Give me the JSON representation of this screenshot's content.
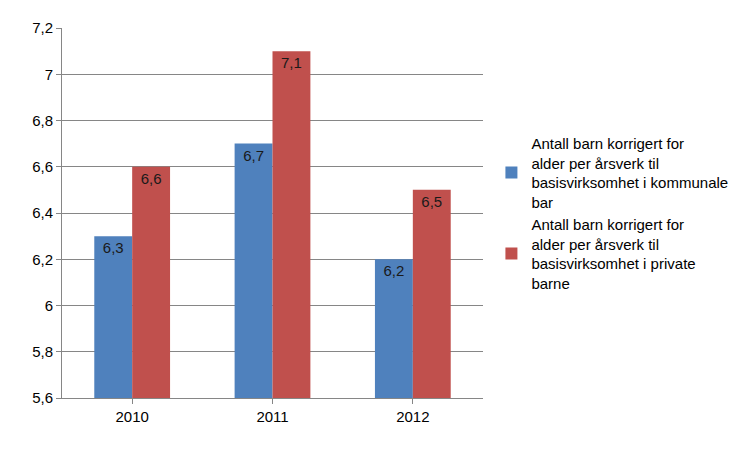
{
  "chart_data": {
    "type": "bar",
    "categories": [
      "2010",
      "2011",
      "2012"
    ],
    "series": [
      {
        "name": "Antall barn korrigert for alder per årsverk til basisvirksomhet i kommunale bar",
        "color": "#4f81bd",
        "values": [
          6.3,
          6.7,
          6.2
        ],
        "value_labels": [
          "6,3",
          "6,7",
          "6,2"
        ]
      },
      {
        "name": "Antall barn korrigert for alder per årsverk til basisvirksomhet i private barne",
        "color": "#c0504d",
        "values": [
          6.6,
          7.1,
          6.5
        ],
        "value_labels": [
          "6,6",
          "7,1",
          "6,5"
        ]
      }
    ],
    "ylim": [
      5.6,
      7.2
    ],
    "yticks": [
      {
        "value": 5.6,
        "label": "5,6"
      },
      {
        "value": 5.8,
        "label": "5,8"
      },
      6,
      {
        "value": 6.2,
        "label": "6,2"
      },
      {
        "value": 6.4,
        "label": "6,4"
      },
      {
        "value": 6.6,
        "label": "6,6"
      },
      {
        "value": 6.8,
        "label": "6,8"
      },
      7,
      {
        "value": 7.2,
        "label": "7,2"
      }
    ],
    "grid": true,
    "legend": "right",
    "data_labels": true
  }
}
